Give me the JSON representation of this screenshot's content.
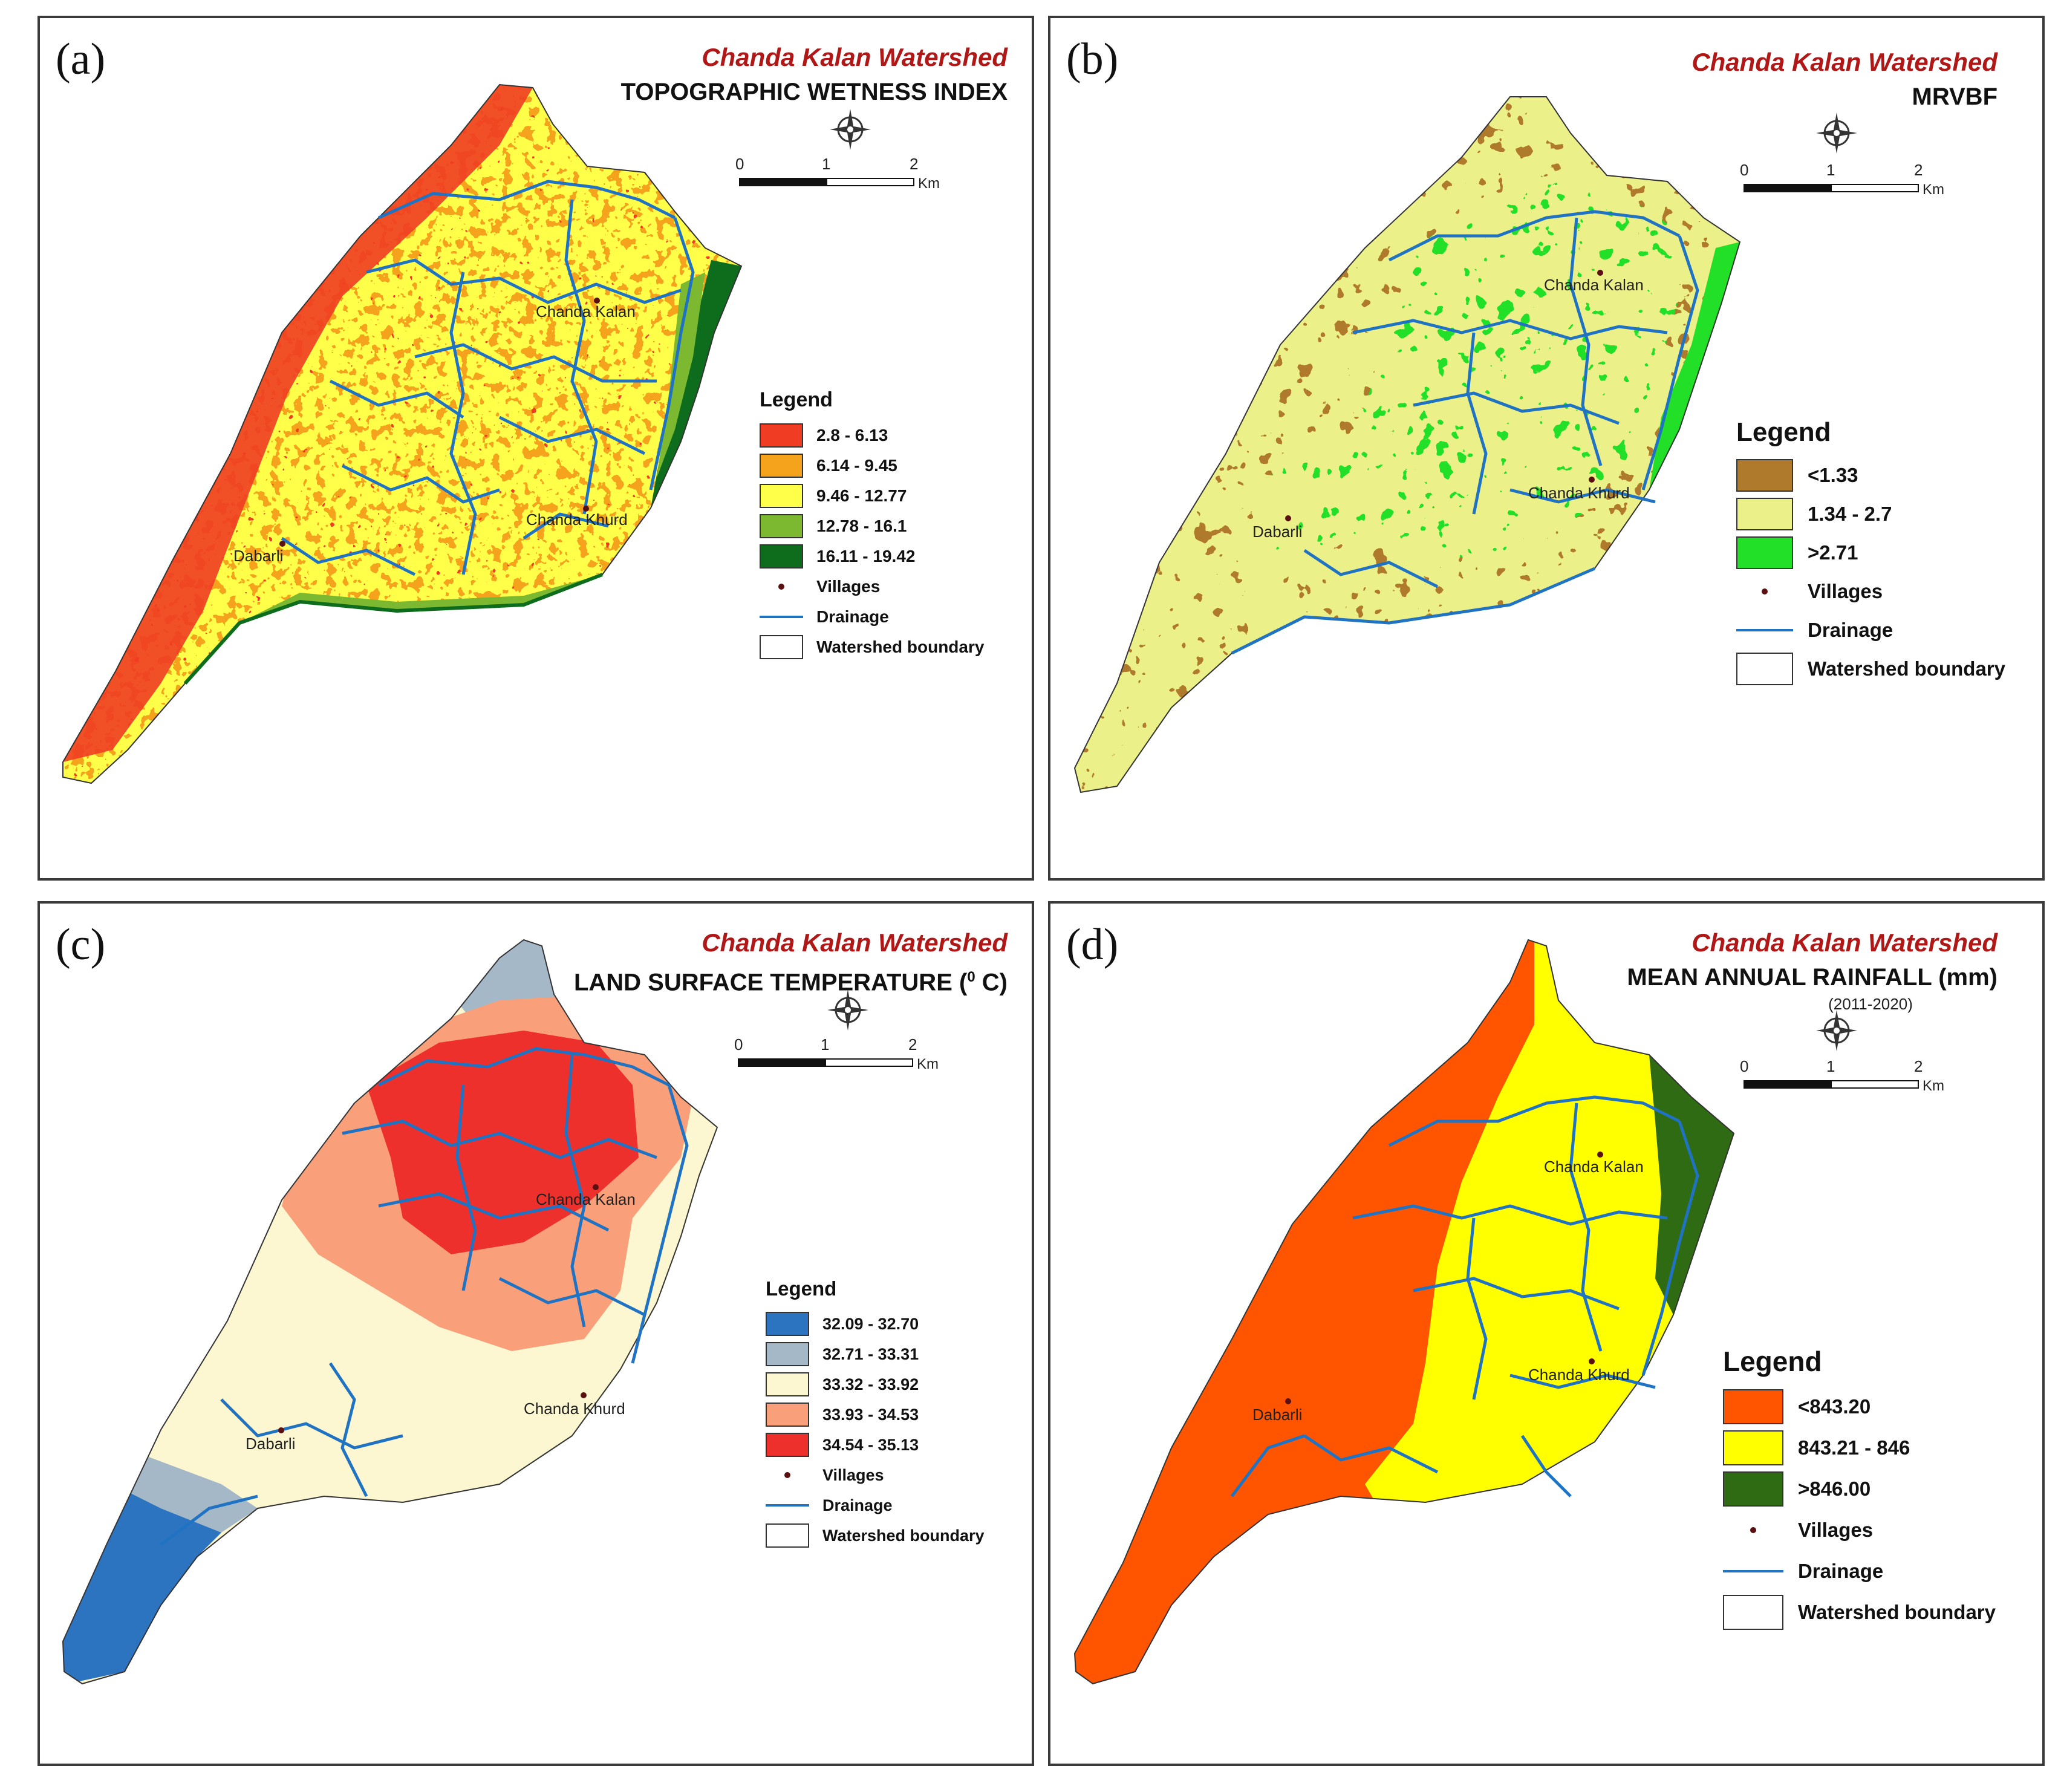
{
  "watershed_name": "Chanda Kalan Watershed",
  "legend_title": "Legend",
  "scale": {
    "ticks": [
      "0",
      "1",
      "2"
    ],
    "unit": "Km"
  },
  "villages": [
    "Chanda Kalan",
    "Chanda Khurd",
    "Dabarli"
  ],
  "common_legend": {
    "villages": "Villages",
    "drainage": "Drainage",
    "boundary": "Watershed boundary"
  },
  "colors": {
    "drainage": "#1f73c2",
    "village_dot": "#5a1010",
    "panel_border": "#3a3a3a",
    "watershed_title": "#b01818"
  },
  "panels": [
    {
      "label": "(a)",
      "map_title": "TOPOGRAPHIC WETNESS INDEX",
      "classes": [
        {
          "label": "2.8 - 6.13",
          "color": "#f03c22"
        },
        {
          "label": "6.14 - 9.45",
          "color": "#f5a21c"
        },
        {
          "label": "9.46 - 12.77",
          "color": "#ffff4a"
        },
        {
          "label": "12.78 - 16.1",
          "color": "#7cb930"
        },
        {
          "label": "16.11 - 19.42",
          "color": "#0e6d1c"
        }
      ]
    },
    {
      "label": "(b)",
      "map_title": "MRVBF",
      "classes": [
        {
          "label": "<1.33",
          "color": "#b07a2c"
        },
        {
          "label": "1.34 - 2.7",
          "color": "#ecf088"
        },
        {
          "label": ">2.71",
          "color": "#22e028"
        }
      ]
    },
    {
      "label": "(c)",
      "map_title": "LAND SURFACE TEMPERATURE (",
      "title_sup": "0",
      "title_end": " C)",
      "classes": [
        {
          "label": "32.09 - 32.70",
          "color": "#2d74c0"
        },
        {
          "label": "32.71 - 33.31",
          "color": "#a5b8c8"
        },
        {
          "label": "33.32 - 33.92",
          "color": "#fcf7d0"
        },
        {
          "label": "33.93 - 34.53",
          "color": "#f9a07a"
        },
        {
          "label": "34.54 - 35.13",
          "color": "#ee302c"
        }
      ]
    },
    {
      "label": "(d)",
      "map_title": "MEAN ANNUAL RAINFALL (mm)",
      "period": "(2011-2020)",
      "classes": [
        {
          "label": "<843.20",
          "color": "#ff5500"
        },
        {
          "label": "843.21 - 846",
          "color": "#ffff00"
        },
        {
          "label": ">846.00",
          "color": "#2f6b12"
        }
      ]
    }
  ]
}
